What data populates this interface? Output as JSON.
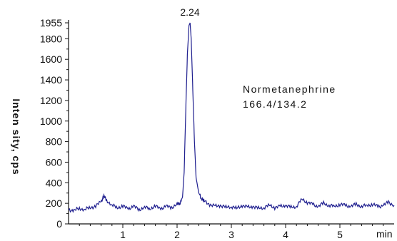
{
  "chart_data": {
    "type": "line",
    "ylabel": "Inten sity, cps",
    "xunit_label": "min",
    "xlim": [
      0.0,
      6.0
    ],
    "ylim": [
      0,
      1955
    ],
    "x_ticks": [
      1,
      2,
      3,
      4,
      5
    ],
    "y_ticks": [
      0,
      200,
      400,
      600,
      800,
      1000,
      1200,
      1400,
      1600,
      1800,
      1955
    ],
    "peak_label": "2.24",
    "annotation": [
      "Normetanephrine",
      "166.4/134.2"
    ],
    "line_color": "#1f1f8f",
    "series": [
      {
        "x": [
          0.0,
          0.1,
          0.2,
          0.3,
          0.4,
          0.5,
          0.6,
          0.65,
          0.7,
          0.8,
          0.9,
          1.0,
          1.1,
          1.2,
          1.3,
          1.4,
          1.5,
          1.6,
          1.7,
          1.8,
          1.9,
          2.0,
          2.05,
          2.1,
          2.13,
          2.16,
          2.19,
          2.22,
          2.24,
          2.26,
          2.29,
          2.32,
          2.35,
          2.4,
          2.45,
          2.5,
          2.6,
          2.7,
          2.8,
          2.9,
          3.0,
          3.1,
          3.2,
          3.3,
          3.4,
          3.5,
          3.6,
          3.7,
          3.8,
          3.9,
          4.0,
          4.1,
          4.2,
          4.3,
          4.4,
          4.5,
          4.6,
          4.7,
          4.8,
          4.9,
          5.0,
          5.1,
          5.2,
          5.3,
          5.4,
          5.5,
          5.6,
          5.7,
          5.8,
          5.9,
          6.0
        ],
        "y": [
          140,
          130,
          150,
          140,
          160,
          170,
          220,
          270,
          230,
          180,
          160,
          170,
          150,
          170,
          140,
          160,
          150,
          170,
          150,
          170,
          160,
          190,
          200,
          260,
          500,
          1100,
          1650,
          1930,
          1955,
          1800,
          1300,
          800,
          450,
          300,
          250,
          220,
          190,
          170,
          180,
          160,
          170,
          150,
          180,
          160,
          170,
          150,
          160,
          180,
          160,
          170,
          180,
          160,
          170,
          240,
          210,
          190,
          170,
          200,
          180,
          170,
          190,
          180,
          170,
          190,
          170,
          180,
          190,
          170,
          180,
          210,
          180
        ]
      }
    ]
  }
}
